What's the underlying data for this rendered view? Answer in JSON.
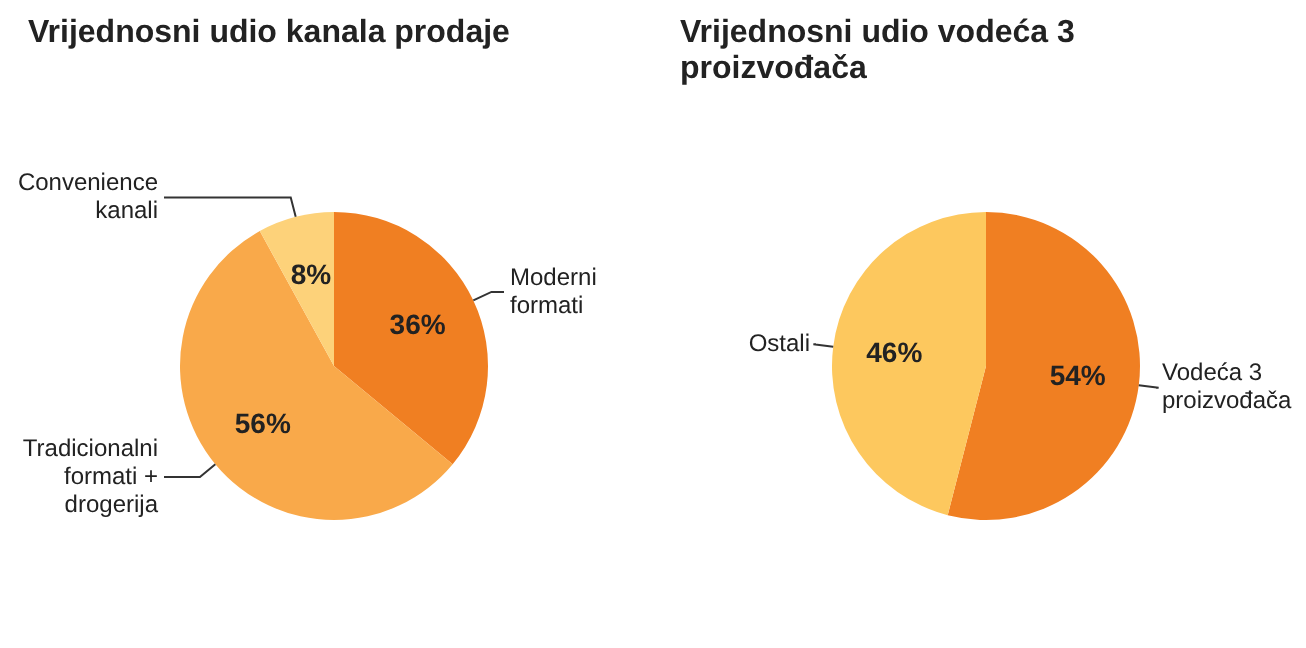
{
  "chart_data": [
    {
      "type": "pie",
      "title": "Vrijednosni udio kanala prodaje",
      "categories": [
        "Moderni formati",
        "Tradicionalni formati + drogerija",
        "Convenience kanali"
      ],
      "values": [
        36,
        56,
        8
      ],
      "colors": [
        "#f07f22",
        "#f9a94a",
        "#fdd27a"
      ],
      "value_labels": [
        "36%",
        "56%",
        "8%"
      ]
    },
    {
      "type": "pie",
      "title": "Vrijednosni udio vodeća 3 proizvođača",
      "categories": [
        "Vodeća 3 proizvođača",
        "Ostali"
      ],
      "values": [
        54,
        46
      ],
      "colors": [
        "#f07f22",
        "#fdc85e"
      ],
      "value_labels": [
        "54%",
        "46%"
      ]
    }
  ]
}
